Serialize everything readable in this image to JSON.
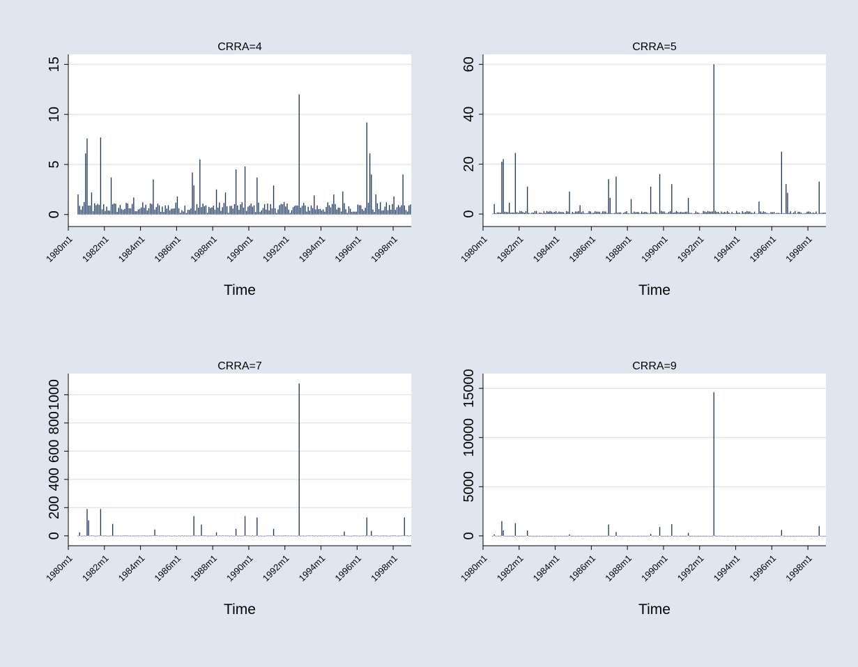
{
  "figure": {
    "background": "#e0e6ef",
    "bar_color": "#1a3560",
    "plot_background": "#ffffff"
  },
  "chart_data": [
    {
      "type": "bar",
      "title": "CRRA=4",
      "xlabel": "Time",
      "ylabel": "",
      "ylim": [
        -1.2,
        16
      ],
      "yticks": [
        0,
        5,
        10,
        15
      ],
      "xlim": [
        "1980m1",
        "1999m1"
      ],
      "xticks": [
        "1980m1",
        "1982m1",
        "1984m1",
        "1986m1",
        "1988m1",
        "1990m1",
        "1992m1",
        "1994m1",
        "1996m1",
        "1998m1"
      ],
      "series_range": [
        "1980m7",
        "1998m12"
      ],
      "baseline_value": 1.0,
      "peaks": [
        {
          "x": "1980m7",
          "y": 2.0
        },
        {
          "x": "1980m12",
          "y": 6.1
        },
        {
          "x": "1981m1",
          "y": 7.6
        },
        {
          "x": "1981m4",
          "y": 2.2
        },
        {
          "x": "1981m10",
          "y": 7.7
        },
        {
          "x": "1982m5",
          "y": 3.7
        },
        {
          "x": "1983m8",
          "y": 1.7
        },
        {
          "x": "1984m9",
          "y": 3.5
        },
        {
          "x": "1986m1",
          "y": 1.8
        },
        {
          "x": "1986m11",
          "y": 4.2
        },
        {
          "x": "1986m12",
          "y": 2.9
        },
        {
          "x": "1987m4",
          "y": 5.5
        },
        {
          "x": "1988m3",
          "y": 2.5
        },
        {
          "x": "1988m9",
          "y": 2.2
        },
        {
          "x": "1989m4",
          "y": 4.5
        },
        {
          "x": "1989m10",
          "y": 4.8
        },
        {
          "x": "1990m6",
          "y": 3.7
        },
        {
          "x": "1991m5",
          "y": 2.9
        },
        {
          "x": "1992m10",
          "y": 12.0
        },
        {
          "x": "1993m8",
          "y": 1.9
        },
        {
          "x": "1994m9",
          "y": 2.0
        },
        {
          "x": "1995m3",
          "y": 2.3
        },
        {
          "x": "1996m7",
          "y": 9.2
        },
        {
          "x": "1996m9",
          "y": 6.1
        },
        {
          "x": "1996m10",
          "y": 4.0
        },
        {
          "x": "1997m1",
          "y": 2.0
        },
        {
          "x": "1998m1",
          "y": 1.8
        },
        {
          "x": "1998m7",
          "y": 4.0
        },
        {
          "x": "1998m11",
          "y": 0.9
        }
      ]
    },
    {
      "type": "bar",
      "title": "CRRA=5",
      "xlabel": "Time",
      "ylabel": "",
      "ylim": [
        -5,
        64
      ],
      "yticks": [
        0,
        20,
        40,
        60
      ],
      "xlim": [
        "1980m1",
        "1999m1"
      ],
      "xticks": [
        "1980m1",
        "1982m1",
        "1984m1",
        "1986m1",
        "1988m1",
        "1990m1",
        "1992m1",
        "1994m1",
        "1996m1",
        "1998m1"
      ],
      "series_range": [
        "1980m7",
        "1998m12"
      ],
      "baseline_value": 1.0,
      "peaks": [
        {
          "x": "1980m8",
          "y": 4.0
        },
        {
          "x": "1981m1",
          "y": 21.0
        },
        {
          "x": "1981m2",
          "y": 22.0
        },
        {
          "x": "1981m6",
          "y": 4.5
        },
        {
          "x": "1981m10",
          "y": 24.5
        },
        {
          "x": "1982m6",
          "y": 11.0
        },
        {
          "x": "1984m10",
          "y": 9.0
        },
        {
          "x": "1985m5",
          "y": 3.5
        },
        {
          "x": "1986m12",
          "y": 14.0
        },
        {
          "x": "1987m1",
          "y": 6.5
        },
        {
          "x": "1987m5",
          "y": 15.0
        },
        {
          "x": "1988m3",
          "y": 6.0
        },
        {
          "x": "1989m4",
          "y": 11.0
        },
        {
          "x": "1989m10",
          "y": 16.0
        },
        {
          "x": "1990m6",
          "y": 12.0
        },
        {
          "x": "1991m5",
          "y": 6.5
        },
        {
          "x": "1992m10",
          "y": 60.0
        },
        {
          "x": "1995m4",
          "y": 5.0
        },
        {
          "x": "1996m7",
          "y": 25.0
        },
        {
          "x": "1996m10",
          "y": 12.0
        },
        {
          "x": "1996m11",
          "y": 8.5
        },
        {
          "x": "1998m8",
          "y": 13.0
        }
      ]
    },
    {
      "type": "bar",
      "title": "CRRA=7",
      "xlabel": "Time",
      "ylabel": "",
      "ylim": [
        -70,
        1150
      ],
      "yticks": [
        0,
        200,
        400,
        600,
        800,
        1000
      ],
      "xlim": [
        "1980m1",
        "1999m1"
      ],
      "xticks": [
        "1980m1",
        "1982m1",
        "1984m1",
        "1986m1",
        "1988m1",
        "1990m1",
        "1992m1",
        "1994m1",
        "1996m1",
        "1998m1"
      ],
      "series_range": [
        "1980m7",
        "1998m12"
      ],
      "baseline_value": 2.0,
      "peaks": [
        {
          "x": "1980m8",
          "y": 25
        },
        {
          "x": "1981m1",
          "y": 190
        },
        {
          "x": "1981m2",
          "y": 110
        },
        {
          "x": "1981m10",
          "y": 190
        },
        {
          "x": "1982m6",
          "y": 85
        },
        {
          "x": "1984m10",
          "y": 45
        },
        {
          "x": "1986m12",
          "y": 140
        },
        {
          "x": "1987m5",
          "y": 80
        },
        {
          "x": "1988m3",
          "y": 25
        },
        {
          "x": "1989m4",
          "y": 50
        },
        {
          "x": "1989m10",
          "y": 140
        },
        {
          "x": "1990m6",
          "y": 130
        },
        {
          "x": "1991m5",
          "y": 50
        },
        {
          "x": "1992m10",
          "y": 1080
        },
        {
          "x": "1995m4",
          "y": 30
        },
        {
          "x": "1996m7",
          "y": 130
        },
        {
          "x": "1996m10",
          "y": 35
        },
        {
          "x": "1998m8",
          "y": 130
        }
      ]
    },
    {
      "type": "bar",
      "title": "CRRA=9",
      "xlabel": "Time",
      "ylabel": "",
      "ylim": [
        -1000,
        16500
      ],
      "yticks": [
        0,
        5000,
        10000,
        15000
      ],
      "xlim": [
        "1980m1",
        "1999m1"
      ],
      "xticks": [
        "1980m1",
        "1982m1",
        "1984m1",
        "1986m1",
        "1988m1",
        "1990m1",
        "1992m1",
        "1994m1",
        "1996m1",
        "1998m1"
      ],
      "series_range": [
        "1980m7",
        "1998m12"
      ],
      "baseline_value": 10,
      "peaks": [
        {
          "x": "1980m8",
          "y": 150
        },
        {
          "x": "1981m1",
          "y": 1500
        },
        {
          "x": "1981m2",
          "y": 550
        },
        {
          "x": "1981m10",
          "y": 1300
        },
        {
          "x": "1982m6",
          "y": 550
        },
        {
          "x": "1984m10",
          "y": 150
        },
        {
          "x": "1986m12",
          "y": 1150
        },
        {
          "x": "1987m5",
          "y": 400
        },
        {
          "x": "1989m4",
          "y": 200
        },
        {
          "x": "1989m10",
          "y": 900
        },
        {
          "x": "1990m6",
          "y": 1200
        },
        {
          "x": "1991m5",
          "y": 300
        },
        {
          "x": "1992m10",
          "y": 14600
        },
        {
          "x": "1996m7",
          "y": 600
        },
        {
          "x": "1998m8",
          "y": 1000
        }
      ]
    }
  ]
}
